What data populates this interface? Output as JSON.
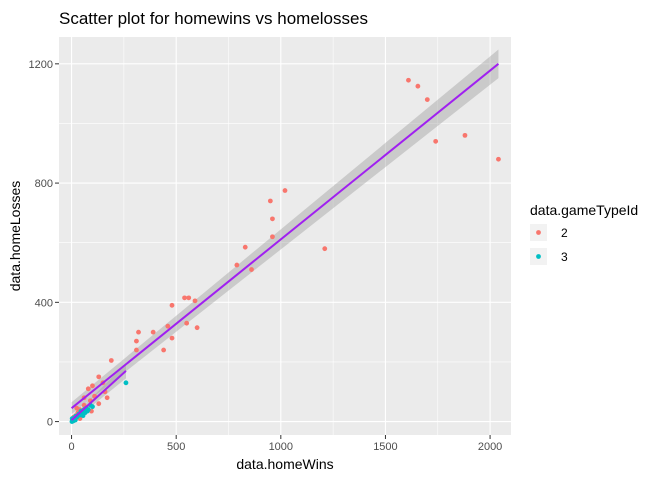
{
  "chart_data": {
    "type": "scatter",
    "title": "Scatter plot for homewins vs homelosses",
    "xlabel": "data.homeWins",
    "ylabel": "data.homeLosses",
    "xlim": [
      -60,
      2100
    ],
    "ylim": [
      -45,
      1290
    ],
    "x_ticks": [
      0,
      500,
      1000,
      1500,
      2000
    ],
    "y_ticks": [
      0,
      400,
      800,
      1200
    ],
    "grid": true,
    "legend": {
      "title": "data.gameTypeId",
      "position": "right",
      "entries": [
        {
          "label": "2",
          "color": "#F8766D"
        },
        {
          "label": "3",
          "color": "#00BFC4"
        }
      ]
    },
    "series": [
      {
        "name": "2",
        "color": "#F8766D",
        "points": [
          [
            1610,
            1145
          ],
          [
            1655,
            1125
          ],
          [
            1700,
            1080
          ],
          [
            2040,
            880
          ],
          [
            1880,
            960
          ],
          [
            1740,
            940
          ],
          [
            1020,
            775
          ],
          [
            950,
            740
          ],
          [
            960,
            680
          ],
          [
            1210,
            580
          ],
          [
            960,
            620
          ],
          [
            830,
            585
          ],
          [
            790,
            525
          ],
          [
            860,
            510
          ],
          [
            540,
            415
          ],
          [
            560,
            415
          ],
          [
            590,
            405
          ],
          [
            480,
            390
          ],
          [
            550,
            330
          ],
          [
            600,
            315
          ],
          [
            460,
            320
          ],
          [
            320,
            300
          ],
          [
            390,
            300
          ],
          [
            310,
            270
          ],
          [
            480,
            280
          ],
          [
            310,
            240
          ],
          [
            440,
            240
          ],
          [
            190,
            205
          ],
          [
            130,
            150
          ],
          [
            150,
            130
          ],
          [
            100,
            120
          ],
          [
            80,
            110
          ],
          [
            160,
            100
          ],
          [
            110,
            85
          ],
          [
            60,
            80
          ],
          [
            90,
            70
          ],
          [
            130,
            60
          ],
          [
            170,
            80
          ],
          [
            60,
            55
          ],
          [
            70,
            45
          ],
          [
            40,
            40
          ],
          [
            95,
            35
          ],
          [
            30,
            30
          ],
          [
            50,
            25
          ],
          [
            20,
            20
          ],
          [
            10,
            15
          ],
          [
            15,
            10
          ],
          [
            5,
            5
          ],
          [
            40,
            10
          ],
          [
            25,
            45
          ]
        ]
      },
      {
        "name": "3",
        "color": "#00BFC4",
        "points": [
          [
            260,
            130
          ],
          [
            90,
            55
          ],
          [
            100,
            50
          ],
          [
            80,
            40
          ],
          [
            70,
            45
          ],
          [
            60,
            40
          ],
          [
            50,
            30
          ],
          [
            45,
            35
          ],
          [
            35,
            25
          ],
          [
            30,
            20
          ],
          [
            25,
            15
          ],
          [
            20,
            18
          ],
          [
            15,
            10
          ],
          [
            10,
            8
          ],
          [
            5,
            5
          ],
          [
            2,
            0
          ],
          [
            8,
            2
          ],
          [
            12,
            12
          ],
          [
            55,
            20
          ],
          [
            40,
            22
          ],
          [
            18,
            5
          ],
          [
            3,
            10
          ],
          [
            65,
            30
          ],
          [
            75,
            35
          ]
        ]
      }
    ],
    "fits": [
      {
        "color": "#A020F0",
        "x": [
          0,
          2040
        ],
        "y": [
          45,
          1200
        ],
        "band": [
          20,
          48
        ]
      },
      {
        "color": "#A020F0",
        "x": [
          0,
          260
        ],
        "y": [
          5,
          170
        ],
        "band": [
          8,
          25
        ]
      }
    ]
  }
}
